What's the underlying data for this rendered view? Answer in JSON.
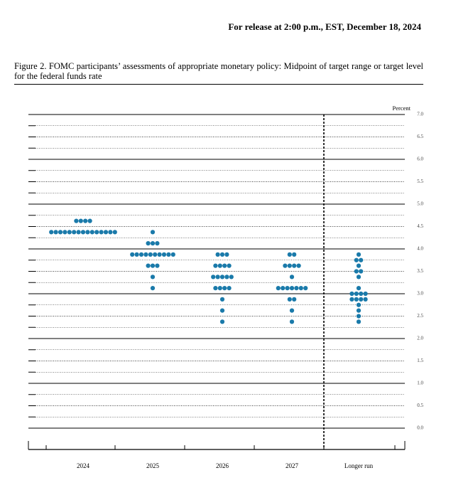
{
  "release_note": "For release at 2:00 p.m., EST, December 18, 2024",
  "chart_data": {
    "type": "dot",
    "title": "Figure 2.  FOMC participants’ assessments of appropriate monetary policy: Midpoint of target range or target level for the federal funds rate",
    "y_axis_label": "Percent",
    "color": "#1a7aaa",
    "categories": [
      "2024",
      "2025",
      "2026",
      "2027",
      "Longer run"
    ],
    "values": [
      [
        4.625,
        4.625,
        4.625,
        4.625,
        4.375,
        4.375,
        4.375,
        4.375,
        4.375,
        4.375,
        4.375,
        4.375,
        4.375,
        4.375,
        4.375,
        4.375,
        4.375,
        4.375,
        4.375
      ],
      [
        4.375,
        4.125,
        4.125,
        4.125,
        3.875,
        3.875,
        3.875,
        3.875,
        3.875,
        3.875,
        3.875,
        3.875,
        3.875,
        3.875,
        3.625,
        3.625,
        3.625,
        3.375,
        3.125
      ],
      [
        3.875,
        3.875,
        3.875,
        3.625,
        3.625,
        3.625,
        3.625,
        3.375,
        3.375,
        3.375,
        3.375,
        3.375,
        3.125,
        3.125,
        3.125,
        3.125,
        2.875,
        2.625,
        2.375
      ],
      [
        3.875,
        3.875,
        3.625,
        3.625,
        3.625,
        3.625,
        3.375,
        3.125,
        3.125,
        3.125,
        3.125,
        3.125,
        3.125,
        3.125,
        2.875,
        2.875,
        2.625,
        2.375
      ],
      [
        3.875,
        3.75,
        3.75,
        3.625,
        3.5,
        3.5,
        3.375,
        3.125,
        3.0,
        3.0,
        3.0,
        3.0,
        2.875,
        2.875,
        2.875,
        2.875,
        2.75,
        2.625,
        2.5,
        2.375
      ]
    ],
    "ylim": [
      0,
      7
    ],
    "yticks": [
      {
        "value": 0,
        "label": "0.0"
      },
      {
        "value": 0.5,
        "label": "0.5"
      },
      {
        "value": 1,
        "label": "1.0"
      },
      {
        "value": 1.5,
        "label": "1.5"
      },
      {
        "value": 2,
        "label": "2.0"
      },
      {
        "value": 2.5,
        "label": "2.5"
      },
      {
        "value": 3,
        "label": "3.0"
      },
      {
        "value": 3.5,
        "label": "3.5"
      },
      {
        "value": 4,
        "label": "4.0"
      },
      {
        "value": 4.5,
        "label": "4.5"
      },
      {
        "value": 5,
        "label": "5.0"
      },
      {
        "value": 5.5,
        "label": "5.5"
      },
      {
        "value": 6,
        "label": "6.0"
      },
      {
        "value": 6.5,
        "label": "6.5"
      },
      {
        "value": 7,
        "label": "7.0"
      }
    ],
    "minor_yticks": [
      0.25,
      0.75,
      1.25,
      1.75,
      2.25,
      2.75,
      3.25,
      3.75,
      4.25,
      4.75,
      5.25,
      5.75,
      6.25,
      6.75
    ]
  }
}
